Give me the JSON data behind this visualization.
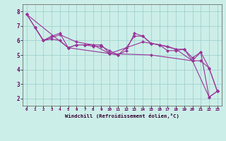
{
  "xlabel": "Windchill (Refroidissement éolien,°C)",
  "bg_color": "#cceee8",
  "line_color": "#993399",
  "xlim": [
    -0.5,
    23.5
  ],
  "ylim": [
    1.5,
    8.5
  ],
  "yticks": [
    2,
    3,
    4,
    5,
    6,
    7,
    8
  ],
  "xticks": [
    0,
    1,
    2,
    3,
    4,
    5,
    6,
    7,
    8,
    9,
    10,
    11,
    12,
    13,
    14,
    15,
    16,
    17,
    18,
    19,
    20,
    21,
    22,
    23
  ],
  "series1": [
    [
      0,
      7.8
    ],
    [
      1,
      6.9
    ],
    [
      2,
      6.0
    ],
    [
      3,
      6.3
    ],
    [
      4,
      6.5
    ],
    [
      5,
      5.5
    ],
    [
      6,
      5.7
    ],
    [
      7,
      5.7
    ],
    [
      8,
      5.7
    ],
    [
      9,
      5.7
    ],
    [
      10,
      5.1
    ],
    [
      11,
      5.0
    ],
    [
      12,
      5.3
    ],
    [
      13,
      6.5
    ],
    [
      14,
      6.3
    ],
    [
      15,
      5.8
    ],
    [
      16,
      5.7
    ],
    [
      17,
      5.6
    ],
    [
      18,
      5.4
    ],
    [
      19,
      5.4
    ],
    [
      20,
      4.8
    ],
    [
      21,
      5.2
    ],
    [
      22,
      4.1
    ],
    [
      23,
      2.5
    ]
  ],
  "series2": [
    [
      0,
      7.8
    ],
    [
      2,
      6.0
    ],
    [
      4,
      6.4
    ],
    [
      6,
      5.9
    ],
    [
      8,
      5.7
    ],
    [
      10,
      5.1
    ],
    [
      12,
      5.5
    ],
    [
      14,
      5.9
    ],
    [
      16,
      5.7
    ],
    [
      18,
      5.4
    ],
    [
      20,
      4.6
    ],
    [
      21,
      5.2
    ],
    [
      22,
      2.1
    ],
    [
      23,
      2.5
    ]
  ],
  "series3": [
    [
      1,
      6.9
    ],
    [
      2,
      6.0
    ],
    [
      3,
      6.1
    ],
    [
      4,
      6.0
    ],
    [
      5,
      5.5
    ],
    [
      6,
      5.7
    ],
    [
      7,
      5.7
    ],
    [
      8,
      5.6
    ],
    [
      9,
      5.6
    ],
    [
      10,
      5.3
    ],
    [
      11,
      5.0
    ],
    [
      12,
      5.5
    ],
    [
      13,
      6.3
    ],
    [
      14,
      6.3
    ],
    [
      15,
      5.8
    ],
    [
      16,
      5.7
    ],
    [
      17,
      5.3
    ],
    [
      18,
      5.3
    ],
    [
      19,
      5.4
    ],
    [
      20,
      4.6
    ],
    [
      21,
      4.6
    ],
    [
      22,
      4.1
    ],
    [
      23,
      2.5
    ]
  ],
  "series4": [
    [
      0,
      7.8
    ],
    [
      5,
      5.5
    ],
    [
      10,
      5.1
    ],
    [
      15,
      5.0
    ],
    [
      20,
      4.6
    ],
    [
      22,
      2.1
    ],
    [
      23,
      2.5
    ]
  ]
}
